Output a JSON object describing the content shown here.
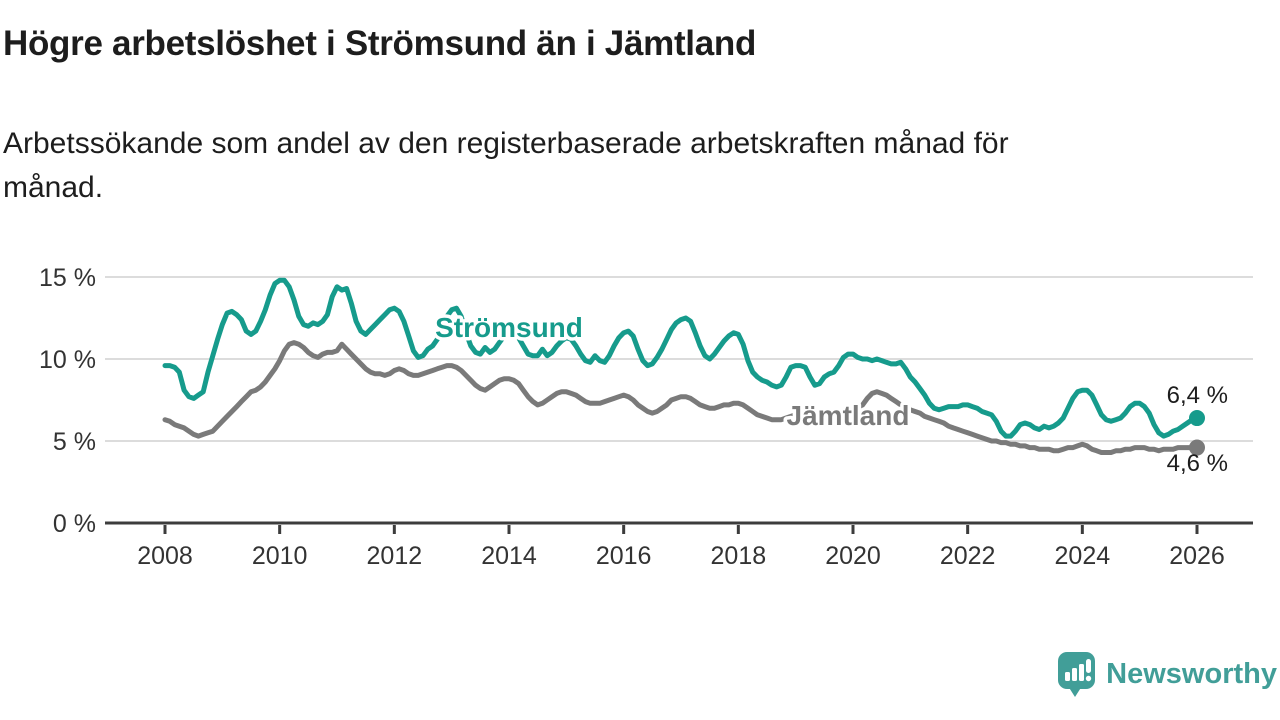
{
  "header": {
    "title": "Högre arbetslöshet i Strömsund än i Jämtland",
    "subtitle": "Arbetssökande som andel av den registerbaserade arbetskraften månad för\nmånad."
  },
  "footer": {
    "brand": "Newsworthy",
    "logo_icon": "bar-chart-speech-bubble"
  },
  "colors": {
    "stromsund": "#169b8c",
    "jamtland": "#7a7a7a",
    "grid": "#dcdcdc",
    "axis": "#3c3c3c",
    "tick_text": "#333333",
    "text": "#1d1d1d",
    "brand": "#419e98"
  },
  "chart_data": {
    "type": "line",
    "frequency": "monthly",
    "x_start": "2008-01",
    "x_end": "2026-01",
    "x_tick_labels": [
      "2008",
      "2010",
      "2012",
      "2014",
      "2016",
      "2018",
      "2020",
      "2022",
      "2024",
      "2026"
    ],
    "y_ticks": [
      0,
      5,
      10,
      15
    ],
    "y_tick_labels": [
      "0 %",
      "5 %",
      "10 %",
      "15 %"
    ],
    "ylim": [
      0,
      15.6
    ],
    "grid": "horizontal",
    "legend": "inline-labels",
    "series": [
      {
        "name": "Strömsund",
        "color": "#169b8c",
        "end_label": "6,4 %",
        "end_value": 6.4,
        "values": [
          9.6,
          9.6,
          9.5,
          9.2,
          8.1,
          7.7,
          7.6,
          7.8,
          8.0,
          9.2,
          10.2,
          11.2,
          12.1,
          12.8,
          12.9,
          12.7,
          12.4,
          11.7,
          11.5,
          11.7,
          12.3,
          13.0,
          13.9,
          14.6,
          14.8,
          14.8,
          14.4,
          13.6,
          12.6,
          12.1,
          12.0,
          12.2,
          12.1,
          12.3,
          12.7,
          13.8,
          14.4,
          14.2,
          14.3,
          13.4,
          12.3,
          11.7,
          11.5,
          11.8,
          12.1,
          12.4,
          12.7,
          13.0,
          13.1,
          12.9,
          12.3,
          11.4,
          10.5,
          10.1,
          10.2,
          10.6,
          10.8,
          11.2,
          11.9,
          12.6,
          13.0,
          13.1,
          12.6,
          11.6,
          10.8,
          10.4,
          10.3,
          10.7,
          10.4,
          10.6,
          11.0,
          11.4,
          11.7,
          11.7,
          11.3,
          10.8,
          10.3,
          10.2,
          10.2,
          10.6,
          10.2,
          10.4,
          10.8,
          11.1,
          11.3,
          11.2,
          10.8,
          10.3,
          9.9,
          9.8,
          10.2,
          9.9,
          9.8,
          10.2,
          10.8,
          11.3,
          11.6,
          11.7,
          11.4,
          10.6,
          9.9,
          9.6,
          9.7,
          10.1,
          10.6,
          11.2,
          11.8,
          12.2,
          12.4,
          12.5,
          12.3,
          11.6,
          10.8,
          10.2,
          10.0,
          10.3,
          10.7,
          11.1,
          11.4,
          11.6,
          11.5,
          10.9,
          9.9,
          9.2,
          8.9,
          8.7,
          8.6,
          8.4,
          8.3,
          8.4,
          8.9,
          9.5,
          9.6,
          9.6,
          9.5,
          8.9,
          8.4,
          8.5,
          8.9,
          9.1,
          9.2,
          9.6,
          10.1,
          10.3,
          10.3,
          10.1,
          10.0,
          10.0,
          9.9,
          10.0,
          9.9,
          9.8,
          9.7,
          9.7,
          9.8,
          9.4,
          8.9,
          8.6,
          8.2,
          7.8,
          7.3,
          7.0,
          6.9,
          7.0,
          7.1,
          7.1,
          7.1,
          7.2,
          7.2,
          7.1,
          7.0,
          6.8,
          6.7,
          6.6,
          6.2,
          5.6,
          5.3,
          5.3,
          5.6,
          6.0,
          6.1,
          6.0,
          5.8,
          5.7,
          5.9,
          5.8,
          5.9,
          6.1,
          6.4,
          7.0,
          7.6,
          8.0,
          8.1,
          8.1,
          7.8,
          7.2,
          6.6,
          6.3,
          6.2,
          6.3,
          6.4,
          6.7,
          7.1,
          7.3,
          7.3,
          7.1,
          6.7,
          6.0,
          5.5,
          5.3,
          5.4,
          5.6,
          5.7,
          5.9,
          6.1,
          6.3,
          6.4
        ]
      },
      {
        "name": "Jämtland",
        "color": "#7a7a7a",
        "end_label": "4,6 %",
        "end_value": 4.6,
        "values": [
          6.3,
          6.2,
          6.0,
          5.9,
          5.8,
          5.6,
          5.4,
          5.3,
          5.4,
          5.5,
          5.6,
          5.9,
          6.2,
          6.5,
          6.8,
          7.1,
          7.4,
          7.7,
          8.0,
          8.1,
          8.3,
          8.6,
          9.0,
          9.4,
          9.9,
          10.5,
          10.9,
          11.0,
          10.9,
          10.7,
          10.4,
          10.2,
          10.1,
          10.3,
          10.4,
          10.4,
          10.5,
          10.9,
          10.6,
          10.3,
          10.0,
          9.7,
          9.4,
          9.2,
          9.1,
          9.1,
          9.0,
          9.1,
          9.3,
          9.4,
          9.3,
          9.1,
          9.0,
          9.0,
          9.1,
          9.2,
          9.3,
          9.4,
          9.5,
          9.6,
          9.6,
          9.5,
          9.3,
          9.0,
          8.7,
          8.4,
          8.2,
          8.1,
          8.3,
          8.5,
          8.7,
          8.8,
          8.8,
          8.7,
          8.5,
          8.1,
          7.7,
          7.4,
          7.2,
          7.3,
          7.5,
          7.7,
          7.9,
          8.0,
          8.0,
          7.9,
          7.8,
          7.6,
          7.4,
          7.3,
          7.3,
          7.3,
          7.4,
          7.5,
          7.6,
          7.7,
          7.8,
          7.7,
          7.5,
          7.2,
          7.0,
          6.8,
          6.7,
          6.8,
          7.0,
          7.2,
          7.5,
          7.6,
          7.7,
          7.7,
          7.6,
          7.4,
          7.2,
          7.1,
          7.0,
          7.0,
          7.1,
          7.2,
          7.2,
          7.3,
          7.3,
          7.2,
          7.0,
          6.8,
          6.6,
          6.5,
          6.4,
          6.3,
          6.3,
          6.3,
          6.4,
          6.5,
          6.6,
          6.6,
          6.5,
          6.4,
          6.3,
          6.3,
          6.4,
          6.5,
          6.5,
          6.6,
          6.6,
          6.7,
          6.8,
          6.9,
          7.2,
          7.6,
          7.9,
          8.0,
          7.9,
          7.8,
          7.6,
          7.4,
          7.2,
          7.1,
          6.9,
          6.8,
          6.7,
          6.5,
          6.4,
          6.3,
          6.2,
          6.1,
          5.9,
          5.8,
          5.7,
          5.6,
          5.5,
          5.4,
          5.3,
          5.2,
          5.1,
          5.0,
          5.0,
          4.9,
          4.9,
          4.8,
          4.8,
          4.7,
          4.7,
          4.6,
          4.6,
          4.5,
          4.5,
          4.5,
          4.4,
          4.4,
          4.5,
          4.6,
          4.6,
          4.7,
          4.8,
          4.7,
          4.5,
          4.4,
          4.3,
          4.3,
          4.3,
          4.4,
          4.4,
          4.5,
          4.5,
          4.6,
          4.6,
          4.6,
          4.5,
          4.5,
          4.4,
          4.5,
          4.5,
          4.5,
          4.6,
          4.6,
          4.6,
          4.6,
          4.6
        ]
      }
    ]
  }
}
